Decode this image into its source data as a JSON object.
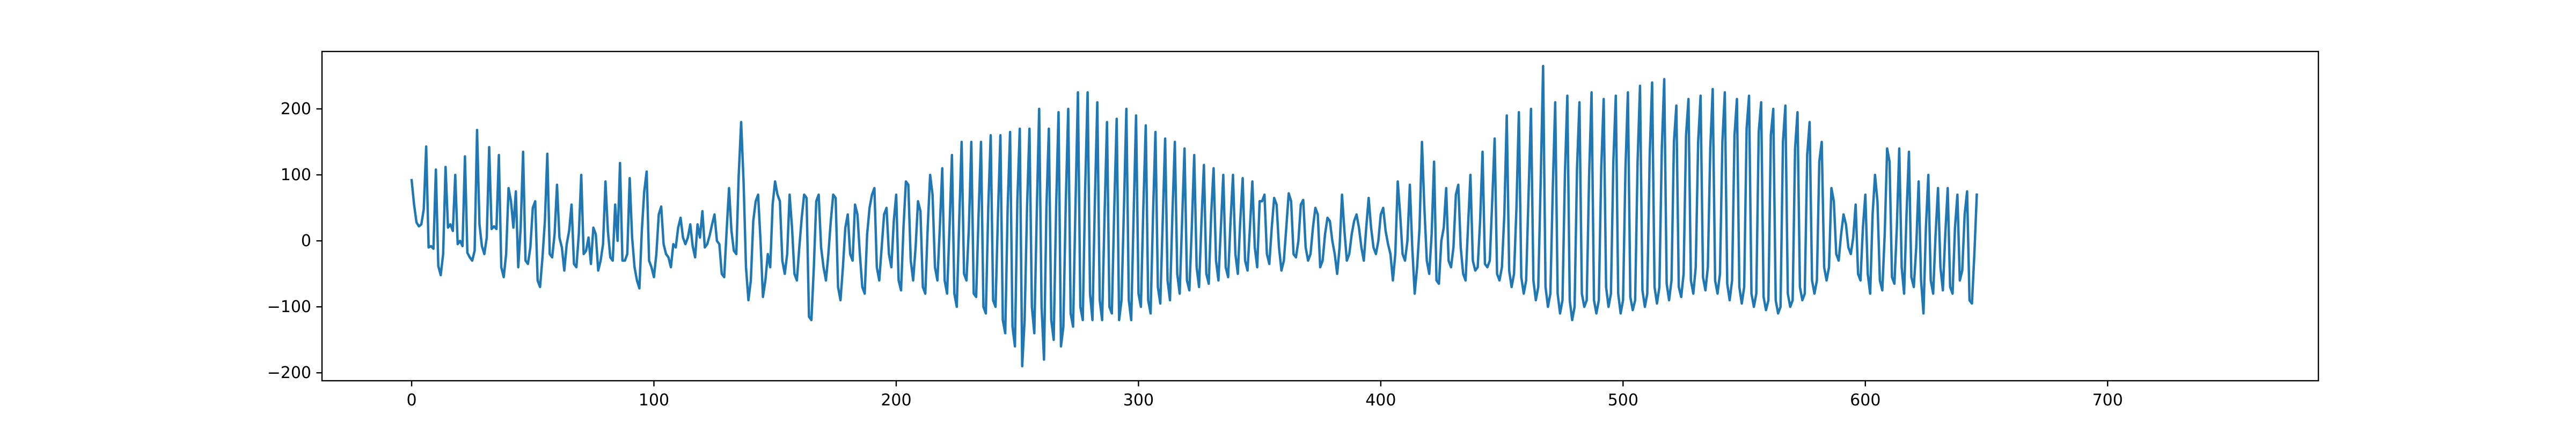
{
  "chart_data": {
    "type": "line",
    "title": "",
    "xlabel": "",
    "ylabel": "",
    "xlim": [
      -37,
      787
    ],
    "ylim": [
      -212,
      287
    ],
    "x_ticks": [
      0,
      100,
      200,
      300,
      400,
      500,
      600,
      700
    ],
    "y_ticks": [
      -200,
      -100,
      0,
      100,
      200
    ],
    "grid": false,
    "legend": "none",
    "line_color": "#1f77b4",
    "series": [
      {
        "x_start": 0,
        "x_step": 1,
        "values": [
          92,
          55,
          28,
          22,
          25,
          48,
          143,
          -10,
          -8,
          -12,
          108,
          -38,
          -52,
          -20,
          112,
          20,
          25,
          15,
          100,
          -5,
          0,
          -8,
          128,
          -18,
          -25,
          -30,
          -15,
          168,
          25,
          -8,
          -20,
          5,
          142,
          18,
          22,
          18,
          130,
          -40,
          -55,
          -20,
          80,
          60,
          20,
          75,
          -40,
          20,
          135,
          -30,
          -35,
          -10,
          50,
          60,
          -60,
          -70,
          -25,
          30,
          132,
          -20,
          -25,
          10,
          85,
          5,
          -10,
          -45,
          -5,
          15,
          55,
          -35,
          -40,
          10,
          100,
          -20,
          -15,
          5,
          -35,
          20,
          10,
          -45,
          -30,
          -5,
          90,
          15,
          -25,
          -30,
          55,
          0,
          118,
          -30,
          -30,
          -20,
          95,
          5,
          -40,
          -60,
          -72,
          15,
          75,
          105,
          -30,
          -40,
          -55,
          -20,
          40,
          52,
          -5,
          -20,
          -25,
          -40,
          -5,
          -10,
          20,
          35,
          5,
          -5,
          5,
          25,
          -8,
          -25,
          25,
          5,
          45,
          -10,
          -5,
          8,
          25,
          40,
          0,
          -5,
          -50,
          -55,
          15,
          80,
          15,
          -15,
          -20,
          100,
          180,
          90,
          -40,
          -90,
          -60,
          30,
          60,
          70,
          0,
          -85,
          -60,
          -20,
          -40,
          55,
          90,
          70,
          60,
          -30,
          -50,
          -20,
          70,
          20,
          -50,
          -60,
          -10,
          35,
          70,
          65,
          -115,
          -120,
          -40,
          60,
          70,
          -10,
          -40,
          -60,
          -20,
          30,
          70,
          65,
          -70,
          -90,
          -40,
          20,
          40,
          -20,
          -30,
          55,
          40,
          -20,
          -70,
          -80,
          10,
          50,
          70,
          80,
          -40,
          -60,
          -10,
          40,
          50,
          -20,
          -40,
          30,
          70,
          -60,
          -75,
          20,
          90,
          85,
          -30,
          -60,
          -10,
          60,
          45,
          -70,
          -80,
          20,
          100,
          70,
          -40,
          -60,
          20,
          110,
          -60,
          -80,
          20,
          130,
          -80,
          -100,
          30,
          150,
          -50,
          -60,
          20,
          150,
          -80,
          -85,
          40,
          150,
          -100,
          -110,
          50,
          160,
          -90,
          -100,
          40,
          160,
          -120,
          -140,
          50,
          165,
          -130,
          -160,
          60,
          170,
          -190,
          -120,
          50,
          170,
          -100,
          -140,
          40,
          200,
          -100,
          -180,
          50,
          170,
          -120,
          -150,
          50,
          195,
          -160,
          -130,
          60,
          200,
          -110,
          -130,
          55,
          225,
          -100,
          -120,
          80,
          225,
          -80,
          -120,
          60,
          210,
          -90,
          -120,
          40,
          180,
          -100,
          -110,
          50,
          185,
          -120,
          -90,
          50,
          200,
          -90,
          -120,
          40,
          190,
          -80,
          -100,
          50,
          175,
          -90,
          -110,
          40,
          165,
          -70,
          -95,
          30,
          155,
          -60,
          -90,
          40,
          150,
          -50,
          -80,
          30,
          140,
          -60,
          -75,
          20,
          130,
          -40,
          -70,
          30,
          115,
          -50,
          -65,
          40,
          110,
          -30,
          -60,
          20,
          100,
          -40,
          -55,
          30,
          100,
          -20,
          -50,
          30,
          95,
          -30,
          -45,
          20,
          90,
          -10,
          -40,
          60,
          60,
          70,
          -20,
          -35,
          20,
          65,
          55,
          -10,
          -45,
          -30,
          20,
          72,
          60,
          -20,
          -25,
          0,
          55,
          62,
          -10,
          -30,
          -20,
          20,
          50,
          40,
          -40,
          -30,
          10,
          35,
          30,
          0,
          -20,
          -50,
          -10,
          70,
          15,
          -30,
          -20,
          10,
          30,
          40,
          20,
          -10,
          -30,
          20,
          65,
          20,
          -10,
          -20,
          0,
          40,
          50,
          15,
          -5,
          -20,
          -60,
          -20,
          90,
          40,
          -20,
          -30,
          0,
          85,
          -10,
          -80,
          -40,
          20,
          150,
          50,
          -30,
          -50,
          10,
          120,
          -60,
          -65,
          0,
          20,
          80,
          -30,
          -40,
          -10,
          70,
          85,
          -10,
          -50,
          -60,
          20,
          100,
          -30,
          -45,
          -40,
          30,
          135,
          -35,
          -40,
          -30,
          60,
          155,
          -50,
          -60,
          -40,
          40,
          190,
          -45,
          -70,
          -50,
          50,
          195,
          -55,
          -80,
          -60,
          70,
          200,
          -60,
          -90,
          -70,
          90,
          265,
          -70,
          -100,
          -80,
          80,
          210,
          -80,
          -110,
          -90,
          100,
          220,
          -90,
          -120,
          -100,
          110,
          210,
          -80,
          -100,
          -90,
          100,
          225,
          -90,
          -110,
          -90,
          110,
          215,
          -70,
          -100,
          -80,
          120,
          220,
          -80,
          -110,
          -90,
          110,
          225,
          -85,
          -105,
          -90,
          120,
          235,
          -75,
          -100,
          -80,
          130,
          240,
          -70,
          -95,
          -70,
          140,
          245,
          -65,
          -90,
          -60,
          150,
          205,
          -70,
          -85,
          -50,
          160,
          215,
          -60,
          -80,
          -40,
          150,
          220,
          -55,
          -75,
          -40,
          140,
          230,
          -60,
          -80,
          -50,
          150,
          225,
          -65,
          -90,
          -60,
          160,
          215,
          -70,
          -95,
          -70,
          170,
          220,
          -80,
          -100,
          -80,
          165,
          210,
          -85,
          -105,
          -90,
          160,
          200,
          -90,
          -110,
          -100,
          150,
          205,
          -80,
          -100,
          -90,
          140,
          195,
          -70,
          -90,
          -80,
          130,
          180,
          -60,
          -80,
          -60,
          120,
          150,
          -40,
          -60,
          -40,
          80,
          60,
          -20,
          -30,
          10,
          40,
          25,
          -10,
          -20,
          5,
          55,
          -50,
          -60,
          20,
          70,
          -50,
          -80,
          40,
          100,
          60,
          -60,
          -75,
          10,
          140,
          120,
          -55,
          -65,
          20,
          140,
          -40,
          -80,
          40,
          135,
          -55,
          -70,
          -10,
          90,
          -60,
          -110,
          20,
          100,
          -60,
          -80,
          10,
          80,
          -40,
          -75,
          10,
          80,
          -70,
          -80,
          20,
          70,
          -60,
          -45,
          40,
          75,
          -90,
          -95,
          -20,
          70
        ]
      }
    ]
  }
}
